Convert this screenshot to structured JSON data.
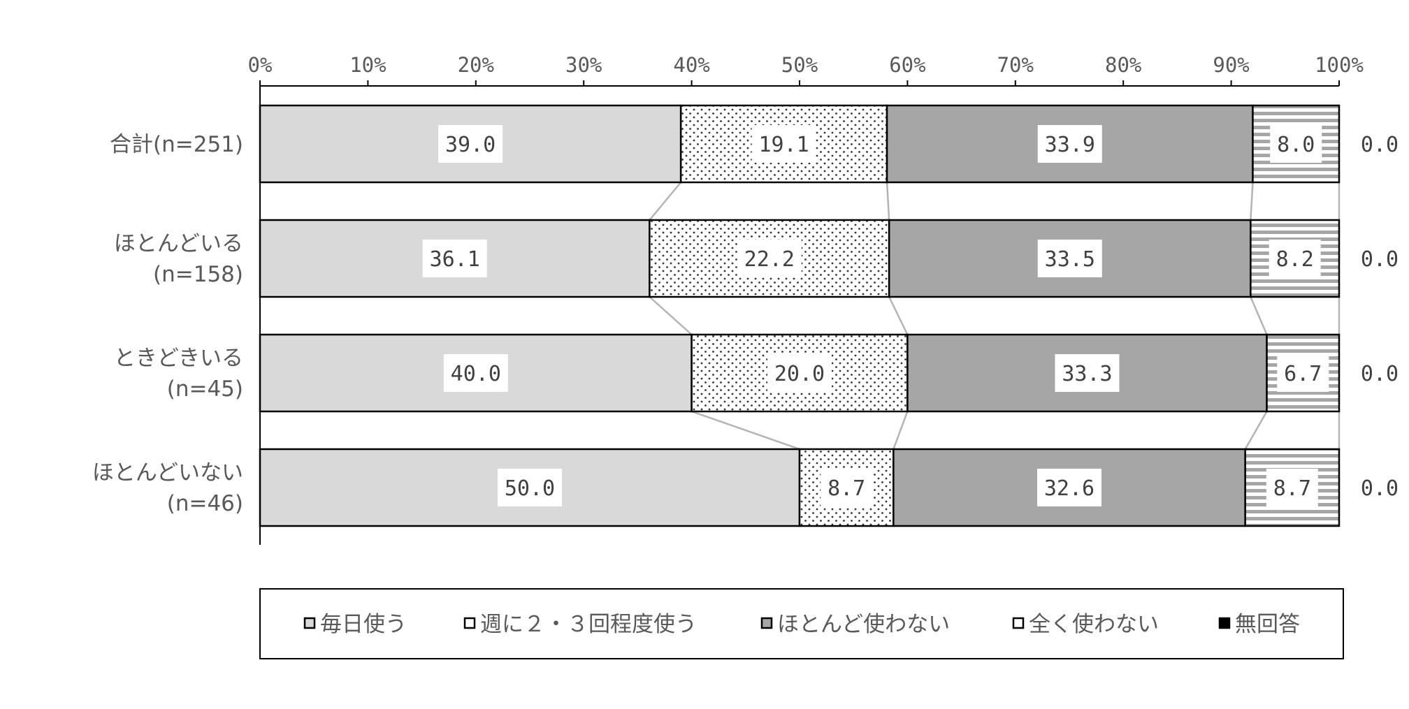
{
  "chart_data": {
    "type": "bar",
    "orientation": "horizontal",
    "stacked": "percent",
    "x_ticks": [
      "0%",
      "10%",
      "20%",
      "30%",
      "40%",
      "50%",
      "60%",
      "70%",
      "80%",
      "90%",
      "100%"
    ],
    "xlim": [
      0,
      100
    ],
    "categories": [
      {
        "lines": [
          "合計(n=251)"
        ]
      },
      {
        "lines": [
          "ほとんどいる",
          "(n=158)"
        ]
      },
      {
        "lines": [
          "ときどきいる",
          "(n=45)"
        ]
      },
      {
        "lines": [
          "ほとんどいない",
          "(n=46)"
        ]
      }
    ],
    "series": [
      {
        "name": "毎日使う",
        "values": [
          39.0,
          36.1,
          40.0,
          50.0
        ],
        "labels": [
          "39.0",
          "36.1",
          "40.0",
          "50.0"
        ],
        "fill": "#d9d9d9",
        "pattern": "solid"
      },
      {
        "name": "週に２・３回程度使う",
        "values": [
          19.1,
          22.2,
          20.0,
          8.7
        ],
        "labels": [
          "19.1",
          "22.2",
          "20.0",
          "8.7"
        ],
        "fill": "#ffffff",
        "pattern": "dots"
      },
      {
        "name": "ほとんど使わない",
        "values": [
          33.9,
          33.5,
          33.3,
          32.6
        ],
        "labels": [
          "33.9",
          "33.5",
          "33.3",
          "32.6"
        ],
        "fill": "#a6a6a6",
        "pattern": "solid"
      },
      {
        "name": "全く使わない",
        "values": [
          8.0,
          8.2,
          6.7,
          8.7
        ],
        "labels": [
          "8.0",
          "8.2",
          "6.7",
          "8.7"
        ],
        "fill": "#ffffff",
        "pattern": "hstripes"
      },
      {
        "name": "無回答",
        "values": [
          0.0,
          0.0,
          0.0,
          0.0
        ],
        "labels": [
          "0.0",
          "0.0",
          "0.0",
          "0.0"
        ],
        "fill": "#000000",
        "pattern": "solid"
      }
    ],
    "series_lines": true,
    "legend_position": "bottom",
    "grid": false
  }
}
